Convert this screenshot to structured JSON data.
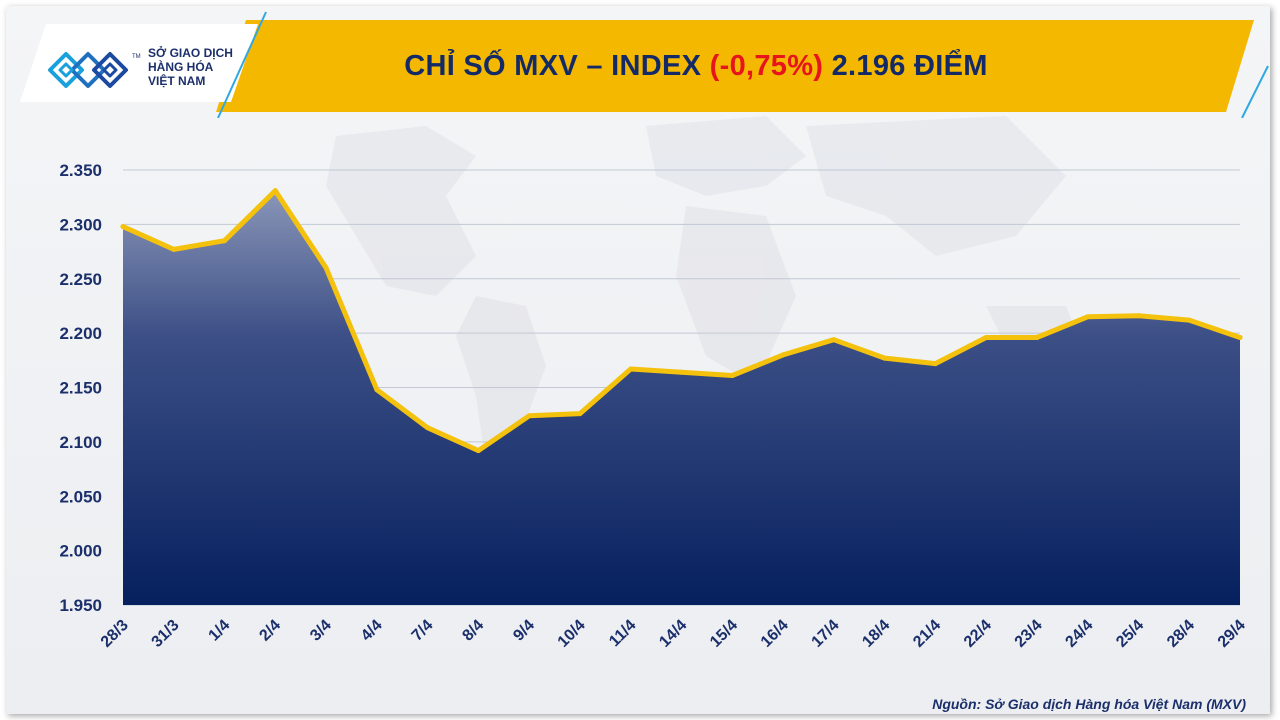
{
  "header": {
    "title_prefix": "CHỈ SỐ MXV – INDEX ",
    "title_change": "(-0,75%)",
    "title_suffix": " 2.196 ĐIỂM",
    "banner_color": "#f4b800",
    "change_color": "#e8141b"
  },
  "logo": {
    "icon": "mxv-logo-icon",
    "line1": "SỞ GIAO DỊCH",
    "line2": "HÀNG HÓA",
    "line3": "VIỆT NAM",
    "trademark": "TM"
  },
  "source": "Nguồn: Sở Giao dịch Hàng hóa Việt Nam (MXV)",
  "chart_data": {
    "type": "area",
    "categories": [
      "28/3",
      "31/3",
      "1/4",
      "2/4",
      "3/4",
      "4/4",
      "7/4",
      "8/4",
      "9/4",
      "10/4",
      "11/4",
      "14/4",
      "15/4",
      "16/4",
      "17/4",
      "18/4",
      "21/4",
      "22/4",
      "23/4",
      "24/4",
      "25/4",
      "28/4",
      "29/4"
    ],
    "values": [
      2298,
      2277,
      2285,
      2331,
      2260,
      2148,
      2113,
      2092,
      2124,
      2126,
      2167,
      2164,
      2161,
      2180,
      2194,
      2177,
      2172,
      2196,
      2196,
      2215,
      2216,
      2212,
      2196
    ],
    "yticks": [
      "2.350",
      "2.300",
      "2.250",
      "2.200",
      "2.150",
      "2.100",
      "2.050",
      "2.000",
      "1.950"
    ],
    "ylim": [
      1950,
      2350
    ],
    "grid": true,
    "line_color": "#f4c20d",
    "fill_top_color": "#8a96b8",
    "fill_bottom_color": "#06205e"
  }
}
